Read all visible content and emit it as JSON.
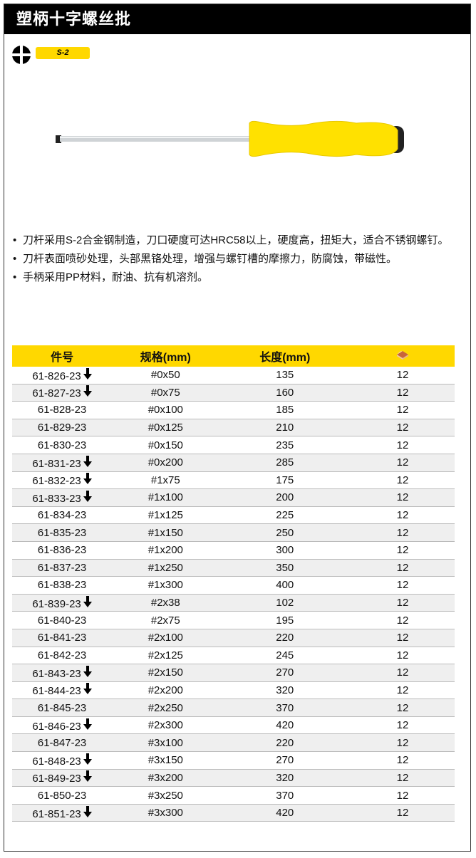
{
  "title": "塑柄十字螺丝批",
  "material_badge": "S-2",
  "features": [
    "刀杆采用S-2合金钢制造，刀口硬度可达HRC58以上，硬度高，扭矩大，适合不锈钢螺钉。",
    "刀杆表面喷砂处理，头部黑铬处理，增强与螺钉槽的摩擦力，防腐蚀，带磁性。",
    "手柄采用PP材料，耐油、抗有机溶剂。"
  ],
  "table": {
    "headers": [
      "件号",
      "规格(mm)",
      "长度(mm)"
    ],
    "qty_icon": "box-icon",
    "header_color": "#ffd800",
    "rows": [
      {
        "part": "61-826-23",
        "arrow": true,
        "spec": "#0x50",
        "length": "135",
        "qty": "12"
      },
      {
        "part": "61-827-23",
        "arrow": true,
        "spec": "#0x75",
        "length": "160",
        "qty": "12"
      },
      {
        "part": "61-828-23",
        "arrow": false,
        "spec": "#0x100",
        "length": "185",
        "qty": "12"
      },
      {
        "part": "61-829-23",
        "arrow": false,
        "spec": "#0x125",
        "length": "210",
        "qty": "12"
      },
      {
        "part": "61-830-23",
        "arrow": false,
        "spec": "#0x150",
        "length": "235",
        "qty": "12"
      },
      {
        "part": "61-831-23",
        "arrow": true,
        "spec": "#0x200",
        "length": "285",
        "qty": "12"
      },
      {
        "part": "61-832-23",
        "arrow": true,
        "spec": "#1x75",
        "length": "175",
        "qty": "12"
      },
      {
        "part": "61-833-23",
        "arrow": true,
        "spec": "#1x100",
        "length": "200",
        "qty": "12"
      },
      {
        "part": "61-834-23",
        "arrow": false,
        "spec": "#1x125",
        "length": "225",
        "qty": "12"
      },
      {
        "part": "61-835-23",
        "arrow": false,
        "spec": "#1x150",
        "length": "250",
        "qty": "12"
      },
      {
        "part": "61-836-23",
        "arrow": false,
        "spec": "#1x200",
        "length": "300",
        "qty": "12"
      },
      {
        "part": "61-837-23",
        "arrow": false,
        "spec": "#1x250",
        "length": "350",
        "qty": "12"
      },
      {
        "part": "61-838-23",
        "arrow": false,
        "spec": "#1x300",
        "length": "400",
        "qty": "12"
      },
      {
        "part": "61-839-23",
        "arrow": true,
        "spec": "#2x38",
        "length": "102",
        "qty": "12"
      },
      {
        "part": "61-840-23",
        "arrow": false,
        "spec": "#2x75",
        "length": "195",
        "qty": "12"
      },
      {
        "part": "61-841-23",
        "arrow": false,
        "spec": "#2x100",
        "length": "220",
        "qty": "12"
      },
      {
        "part": "61-842-23",
        "arrow": false,
        "spec": "#2x125",
        "length": "245",
        "qty": "12"
      },
      {
        "part": "61-843-23",
        "arrow": true,
        "spec": "#2x150",
        "length": "270",
        "qty": "12"
      },
      {
        "part": "61-844-23",
        "arrow": true,
        "spec": "#2x200",
        "length": "320",
        "qty": "12"
      },
      {
        "part": "61-845-23",
        "arrow": false,
        "spec": "#2x250",
        "length": "370",
        "qty": "12"
      },
      {
        "part": "61-846-23",
        "arrow": true,
        "spec": "#2x300",
        "length": "420",
        "qty": "12"
      },
      {
        "part": "61-847-23",
        "arrow": false,
        "spec": "#3x100",
        "length": "220",
        "qty": "12"
      },
      {
        "part": "61-848-23",
        "arrow": true,
        "spec": "#3x150",
        "length": "270",
        "qty": "12"
      },
      {
        "part": "61-849-23",
        "arrow": true,
        "spec": "#3x200",
        "length": "320",
        "qty": "12"
      },
      {
        "part": "61-850-23",
        "arrow": false,
        "spec": "#3x250",
        "length": "370",
        "qty": "12"
      },
      {
        "part": "61-851-23",
        "arrow": true,
        "spec": "#3x300",
        "length": "420",
        "qty": "12"
      }
    ]
  }
}
